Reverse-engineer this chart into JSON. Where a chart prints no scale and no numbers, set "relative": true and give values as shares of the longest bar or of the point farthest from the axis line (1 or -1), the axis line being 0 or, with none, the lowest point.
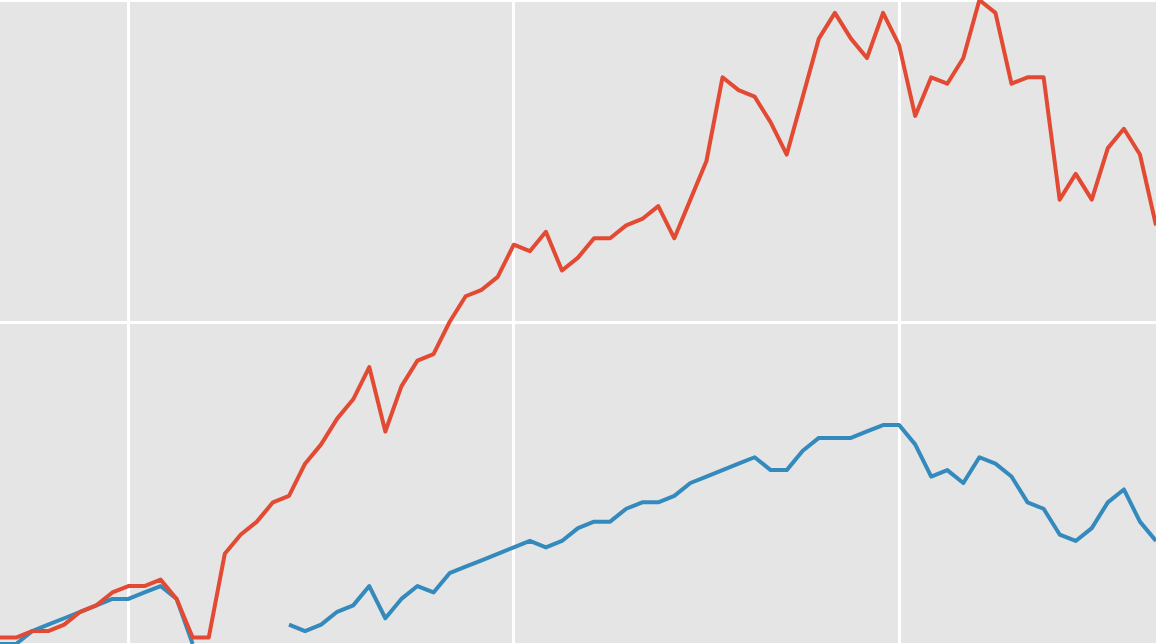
{
  "chart_data": {
    "type": "line",
    "relative": true,
    "grid": true,
    "marker": "none",
    "line_style": "solid",
    "categories": [
      null,
      null,
      null,
      null,
      null,
      null,
      null,
      null,
      null,
      null,
      null,
      null,
      null,
      null,
      null,
      null,
      null,
      null,
      null,
      null,
      null,
      null,
      null,
      null,
      null,
      null,
      null,
      null,
      null,
      null,
      null,
      null,
      null,
      null,
      null,
      null,
      null,
      null,
      null,
      null,
      null,
      null,
      null,
      null,
      null,
      null,
      null,
      null,
      null,
      null,
      null,
      null,
      null,
      null,
      null,
      null,
      null,
      null,
      null,
      null,
      null,
      null,
      null,
      null,
      null,
      null,
      null,
      null,
      null,
      null,
      null,
      null,
      null
    ],
    "series": [
      {
        "color": "#e24a33",
        "values": [
          0.01,
          0.01,
          0.02,
          0.02,
          0.03,
          0.05,
          0.06,
          0.08,
          0.09,
          0.09,
          0.1,
          0.07,
          0.01,
          0.01,
          0.14,
          0.17,
          0.19,
          0.22,
          0.23,
          0.28,
          0.31,
          0.35,
          0.38,
          0.43,
          0.33,
          0.4,
          0.44,
          0.45,
          0.5,
          0.54,
          0.55,
          0.57,
          0.62,
          0.61,
          0.64,
          0.58,
          0.6,
          0.63,
          0.63,
          0.65,
          0.66,
          0.68,
          0.63,
          0.69,
          0.75,
          0.88,
          0.86,
          0.85,
          0.81,
          0.76,
          0.85,
          0.94,
          0.98,
          0.94,
          0.91,
          0.98,
          0.93,
          0.82,
          0.88,
          0.87,
          0.91,
          1.0,
          0.98,
          0.87,
          0.88,
          0.88,
          0.69,
          0.73,
          0.69,
          0.77,
          0.8,
          0.76,
          0.65
        ]
      },
      {
        "color": "#348abd",
        "values": [
          0,
          0,
          0.02,
          0.03,
          0.04,
          0.05,
          0.06,
          0.07,
          0.07,
          0.08,
          0.09,
          0.07,
          0,
          null,
          null,
          null,
          null,
          null,
          0.03,
          0.02,
          0.03,
          0.05,
          0.06,
          0.09,
          0.04,
          0.07,
          0.09,
          0.08,
          0.11,
          0.12,
          0.13,
          0.14,
          0.15,
          0.16,
          0.15,
          0.16,
          0.18,
          0.19,
          0.19,
          0.21,
          0.22,
          0.22,
          0.23,
          0.25,
          0.26,
          0.27,
          0.28,
          0.29,
          0.27,
          0.27,
          0.3,
          0.32,
          0.32,
          0.32,
          0.33,
          0.34,
          0.34,
          0.31,
          0.26,
          0.27,
          0.25,
          0.29,
          0.28,
          0.26,
          0.22,
          0.21,
          0.17,
          0.16,
          0.18,
          0.22,
          0.24,
          0.19,
          0.16
        ]
      }
    ]
  }
}
